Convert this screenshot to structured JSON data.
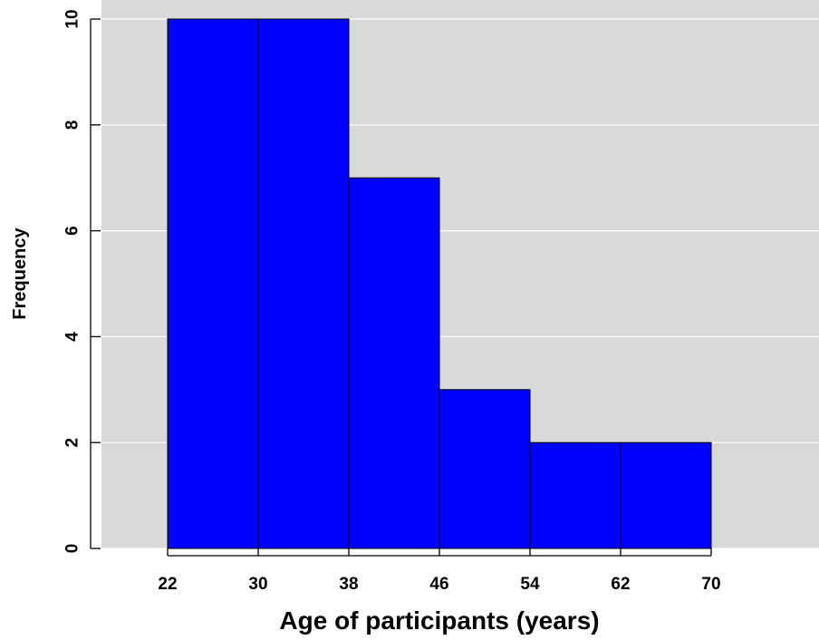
{
  "chart_data": {
    "type": "bar",
    "bin_edges": [
      22,
      30,
      38,
      46,
      54,
      62,
      70
    ],
    "values": [
      10,
      10,
      7,
      3,
      2,
      2
    ],
    "xlabel": "Age of participants (years)",
    "ylabel": "Frequency",
    "x_ticks": [
      "22",
      "30",
      "38",
      "46",
      "54",
      "62",
      "70"
    ],
    "y_ticks": [
      "0",
      "2",
      "4",
      "6",
      "8",
      "10"
    ],
    "xlim": [
      22,
      70
    ],
    "ylim": [
      0,
      10
    ],
    "grid": "horizontal",
    "colors": {
      "bar_fill": "#0000FF",
      "bar_stroke": "#000000",
      "panel_background": "#D9D9D9",
      "grid_line": "#FFFFFF"
    }
  }
}
